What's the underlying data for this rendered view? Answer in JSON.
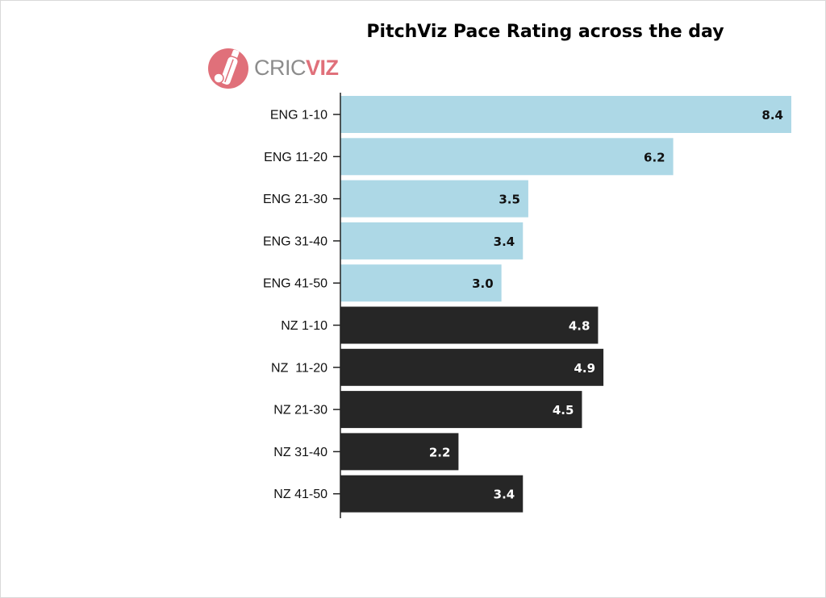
{
  "logo": {
    "text_part1": "CRIC",
    "text_part2": "VIZ",
    "icon": "cricket-bat-ball-icon",
    "colors": {
      "circle": "#e0707a",
      "text_grey": "#8c8c8c"
    }
  },
  "chart_data": {
    "type": "bar",
    "orientation": "horizontal",
    "title": "PitchViz Pace Rating across the day",
    "xlabel": "",
    "ylabel": "",
    "xlim": [
      0,
      8.4
    ],
    "grid": false,
    "legend": "none",
    "categories": [
      "ENG 1-10",
      "ENG 11-20",
      "ENG 21-30",
      "ENG 31-40",
      "ENG 41-50",
      "NZ 1-10",
      "NZ  11-20",
      "NZ 21-30",
      "NZ 31-40",
      "NZ 41-50"
    ],
    "values": [
      8.4,
      6.2,
      3.5,
      3.4,
      3.0,
      4.8,
      4.9,
      4.5,
      2.2,
      3.4
    ],
    "value_labels": [
      "8.4",
      "6.2",
      "3.5",
      "3.4",
      "3.0",
      "4.8",
      "4.9",
      "4.5",
      "2.2",
      "3.4"
    ],
    "groups": [
      "ENG",
      "ENG",
      "ENG",
      "ENG",
      "ENG",
      "NZ",
      "NZ",
      "NZ",
      "NZ",
      "NZ"
    ],
    "colors": {
      "ENG": {
        "bar": "#add8e6",
        "label": "#111111"
      },
      "NZ": {
        "bar": "#262626",
        "label": "#ffffff"
      }
    }
  }
}
